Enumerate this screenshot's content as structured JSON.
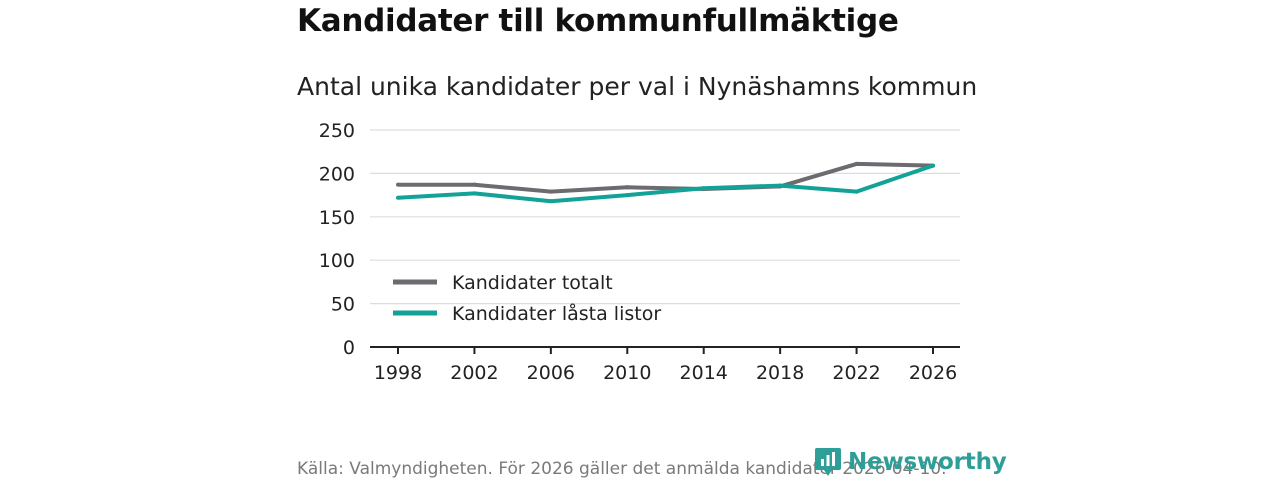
{
  "header": {
    "title": "Kandidater till kommunfullmäktige",
    "subtitle": "Antal unika kandidater per val i Nynäshamns kommun"
  },
  "footer": {
    "source": "Källa: Valmyndigheten. För 2026 gäller det anmälda kandidater 2026-04-10.",
    "logo_text": "Newsworthy"
  },
  "colors": {
    "series_total": "#6d6a70",
    "series_locked": "#13a297",
    "gridline": "#dddddd",
    "axis": "#222222",
    "brand": "#2e9e98"
  },
  "chart_data": {
    "type": "line",
    "title": "Kandidater till kommunfullmäktige",
    "subtitle": "Antal unika kandidater per val i Nynäshamns kommun",
    "xlabel": "",
    "ylabel": "",
    "x": [
      "1998",
      "2002",
      "2006",
      "2010",
      "2014",
      "2018",
      "2022",
      "2026"
    ],
    "ylim": [
      0,
      250
    ],
    "yticks": [
      0,
      50,
      100,
      150,
      200,
      250
    ],
    "grid": true,
    "legend_position": "bottom-left",
    "series": [
      {
        "name": "Kandidater totalt",
        "color": "#6d6a70",
        "values": [
          187,
          187,
          179,
          184,
          182,
          185,
          211,
          209
        ]
      },
      {
        "name": "Kandidater låsta listor",
        "color": "#13a297",
        "values": [
          172,
          177,
          168,
          175,
          183,
          186,
          179,
          209
        ]
      }
    ]
  }
}
